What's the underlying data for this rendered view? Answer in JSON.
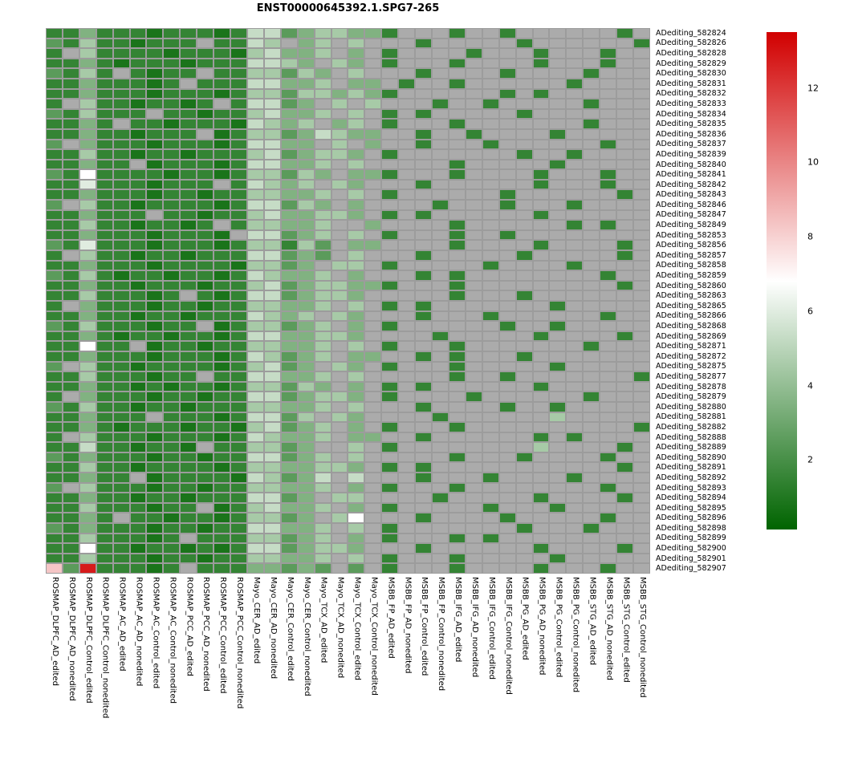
{
  "chart_data": {
    "type": "heatmap",
    "title": "ENST00000645392.1.SPG7-265",
    "rows": [
      "ADediting_582824",
      "ADediting_582826",
      "ADediting_582828",
      "ADediting_582829",
      "ADediting_582830",
      "ADediting_582831",
      "ADediting_582832",
      "ADediting_582833",
      "ADediting_582834",
      "ADediting_582835",
      "ADediting_582836",
      "ADediting_582837",
      "ADediting_582839",
      "ADediting_582840",
      "ADediting_582841",
      "ADediting_582842",
      "ADediting_582843",
      "ADediting_582846",
      "ADediting_582847",
      "ADediting_582849",
      "ADediting_582853",
      "ADediting_582856",
      "ADediting_582857",
      "ADediting_582858",
      "ADediting_582859",
      "ADediting_582860",
      "ADediting_582863",
      "ADediting_582865",
      "ADediting_582866",
      "ADediting_582868",
      "ADediting_582869",
      "ADediting_582871",
      "ADediting_582872",
      "ADediting_582875",
      "ADediting_582877",
      "ADediting_582878",
      "ADediting_582879",
      "ADediting_582880",
      "ADediting_582881",
      "ADediting_582882",
      "ADediting_582888",
      "ADediting_582889",
      "ADediting_582890",
      "ADediting_582891",
      "ADediting_582892",
      "ADediting_582893",
      "ADediting_582894",
      "ADediting_582895",
      "ADediting_582896",
      "ADediting_582898",
      "ADediting_582899",
      "ADediting_582900",
      "ADediting_582901",
      "ADediting_582907"
    ],
    "columns": [
      "ROSMAP_DLPFC_AD_edited",
      "ROSMAP_DLPFC_AD_nonedited",
      "ROSMAP_DLPFC_Control_edited",
      "ROSMAP_DLPFC_Control_nonedited",
      "ROSMAP_AC_AD_edited",
      "ROSMAP_AC_AD_nonedited",
      "ROSMAP_AC_Control_edited",
      "ROSMAP_AC_Control_nonedited",
      "ROSMAP_PCC_AD_edited",
      "ROSMAP_PCC_AD_nonedited",
      "ROSMAP_PCC_Control_edited",
      "ROSMAP_PCC_Control_nonedited",
      "Mayo_CER_AD_edited",
      "Mayo_CER_AD_nonedited",
      "Mayo_CER_Control_edited",
      "Mayo_CER_Control_nonedited",
      "Mayo_TCX_AD_edited",
      "Mayo_TCX_AD_nonedited",
      "Mayo_TCX_Control_edited",
      "Mayo_TCX_Control_nonedited",
      "MSBB_FP_AD_edited",
      "MSBB_FP_AD_nonedited",
      "MSBB_FP_Control_edited",
      "MSBB_FP_Control_nonedited",
      "MSBB_IFG_AD_edited",
      "MSBB_IFG_AD_nonedited",
      "MSBB_IFG_Control_edited",
      "MSBB_IFG_Control_nonedited",
      "MSBB_PG_AD_edited",
      "MSBB_PG_AD_nonedited",
      "MSBB_PG_Control_edited",
      "MSBB_PG_Control_nonedited",
      "MSBB_STG_AD_edited",
      "MSBB_STG_AD_nonedited",
      "MSBB_STG_Control_edited",
      "MSBB_STG_Control_nonedited"
    ],
    "value_code_map": {
      ".": null,
      "0": 0.8,
      "1": 1.5,
      "2": 2.5,
      "3": 3.5,
      "4": 4.5,
      "5": 5.3,
      "6": 6.0,
      "w": 6.8,
      "p": 8.3,
      "r": 12.8
    },
    "matrix_codes": [
      "113111011101552344331...1..1......1.",
      "214110111.1154.34.4...1.....1......1",
      "1.411110111045334.3.1....1...1...1..",
      "1131011101115543.43.1...1....1...1..",
      "2141.1011.1144243.4...1....1....1...",
      "11311101.11155334.33.1..1......1....",
      "113111011101442443431......1.1......",
      "1.41101101.15523.4.4...1..1.....1...",
      "214111.1101145334.4.1.1.....1.......",
      "1131.11011105434.34.1...1.......1...",
      "113110111.0144235433..1..1....1.....",
      "2.31110111015533.4.3..1...1......1..",
      "1141101101114523443.1.......1..1....",
      "11311.01110155334.4.....1.....1.....",
      "21w11110110144243.331...1....1...1..",
      "1161110111.15434.43...1......1...1..",
      "11311101101144334.4.1......1......1.",
      "2.411011110155243.3....1...1...1....",
      "113111.110114533443.1.1......1......",
      "1141101101.144334..3....1......1.1..",
      "11311101110.55234.4.1...1..1........",
      "21611101110144142.33....1....1....1.",
      "1.411011011155232.4...1.....1.....1.",
      "1131110111104423.44.1.....1....1....",
      "21410110110154334.3...1.1........1..",
      "113110111011452344331...1.........1.",
      "11411101.1015523443.....1...1.......",
      "1.311101101144334.4.1.1.......1.....",
      "1131101101115434.43...1...1......1..",
      "214111011.0144234.3.1......1..1.....",
      "1131011011015533443....1.....1....1.",
      "11w11.01101144334.4.1...1.......1...",
      "11311101110154234.33..1.1...1.......",
      "2.41101111014523.43.1...1.....1.....",
      "114111011.1155334.4.....1..1.......1",
      "11311010110144243.3.1.1......1......",
      "1.31110110115523443.1....1......1...",
      "21411011011144334.4...1....1..1.....",
      "113111.111015524.43....1......4.....",
      "11310111011045234.3.1...1..........1",
      "1.411101110154334.33..1......1.1....",
      "115110110.114423..4.1........4....1.",
      "21311101101155234.4.....1...1....1..",
      "1141101111014433443.1.1...........1.",
      "11311.01111054235.5...1...1....1....",
      "2.411101101144334.3.1...1........1..",
      "1131101101115523.44....1.....1....1.",
      "114111011.0145334.3.1.....1...1.....",
      "1131.11011014423.4w...1....1.....1..",
      "21311101101155334.4.1.......1...1...",
      "11411101.11144234.3.1...1.1.........",
      "11w1101101015523443...1......1....1.",
      "11411101101144334.4.1...1.....1.....",
      "p2r11101.11133232.2.1...1....1...1.."
    ],
    "color_scale": {
      "min": 0.13,
      "mid": 6.8,
      "max": 13.5,
      "low": "#006400",
      "mid_color": "#ffffff",
      "high": "#d10000"
    },
    "na_color": "#ababab",
    "grid_line_color": "#9c9c9c",
    "legend_ticks": [
      12,
      10,
      8,
      6,
      4,
      2
    ],
    "legend_position": "right"
  }
}
